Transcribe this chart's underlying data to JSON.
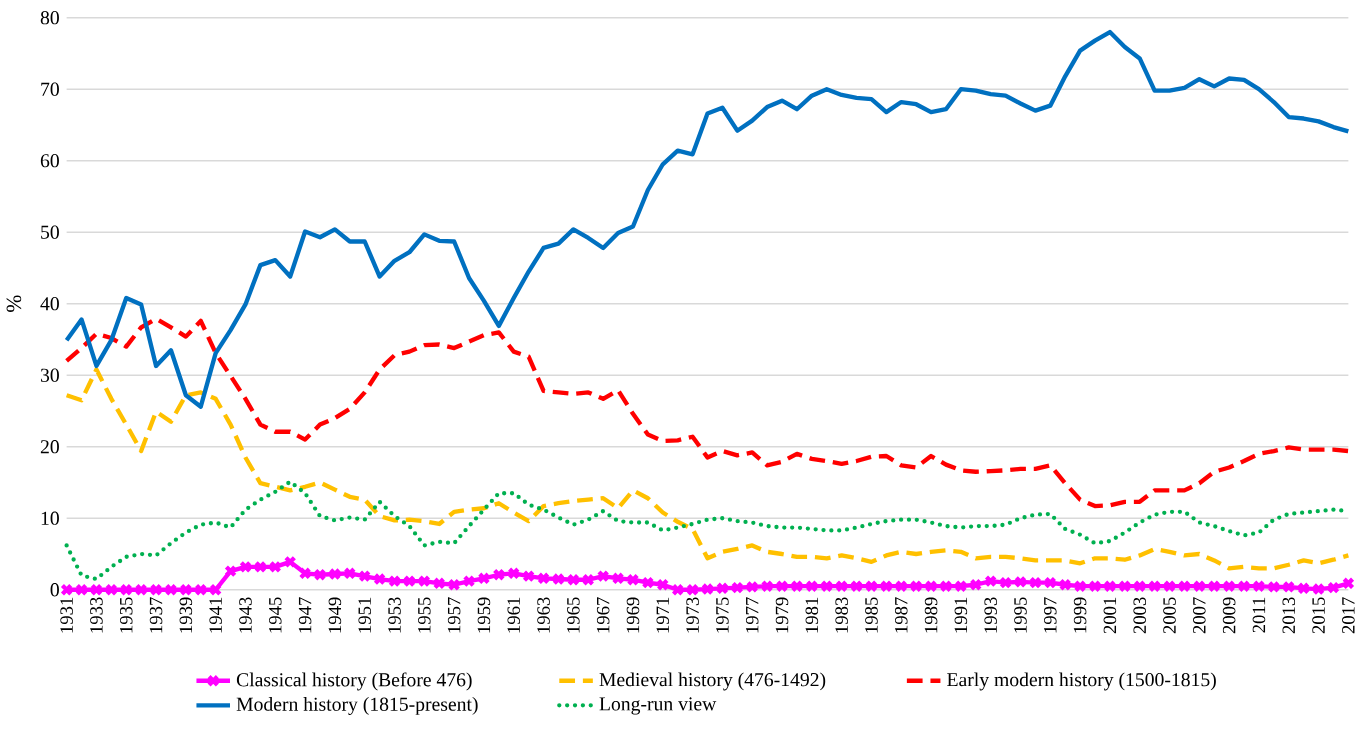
{
  "chart_data": {
    "type": "line",
    "ylabel": "%",
    "x": [
      1931,
      1932,
      1933,
      1934,
      1935,
      1936,
      1937,
      1938,
      1939,
      1940,
      1941,
      1942,
      1943,
      1944,
      1945,
      1946,
      1947,
      1948,
      1949,
      1950,
      1951,
      1952,
      1953,
      1954,
      1955,
      1956,
      1957,
      1958,
      1959,
      1960,
      1961,
      1962,
      1963,
      1964,
      1965,
      1966,
      1967,
      1968,
      1969,
      1970,
      1971,
      1972,
      1973,
      1974,
      1975,
      1976,
      1977,
      1978,
      1979,
      1980,
      1981,
      1982,
      1983,
      1984,
      1985,
      1986,
      1987,
      1988,
      1989,
      1990,
      1991,
      1992,
      1993,
      1994,
      1995,
      1996,
      1997,
      1998,
      1999,
      2000,
      2001,
      2002,
      2003,
      2004,
      2005,
      2006,
      2007,
      2008,
      2009,
      2010,
      2011,
      2012,
      2013,
      2014,
      2015,
      2016,
      2017
    ],
    "xlim": [
      1931,
      2017
    ],
    "xticks": [
      1931,
      1933,
      1935,
      1937,
      1939,
      1941,
      1943,
      1945,
      1947,
      1949,
      1951,
      1953,
      1955,
      1957,
      1959,
      1961,
      1963,
      1965,
      1967,
      1969,
      1971,
      1973,
      1975,
      1977,
      1979,
      1981,
      1983,
      1985,
      1987,
      1989,
      1991,
      1993,
      1995,
      1997,
      1999,
      2001,
      2003,
      2005,
      2007,
      2009,
      2011,
      2013,
      2015,
      2017
    ],
    "ylim": [
      0,
      80
    ],
    "yticks": [
      0,
      10,
      20,
      30,
      40,
      50,
      60,
      70,
      80
    ],
    "grid": "y",
    "legend": "bottom",
    "series": [
      {
        "name": "Classical history (Before 476)",
        "color": "#ff00ff",
        "marker": "cross",
        "line_style": "solid",
        "values": [
          0,
          0,
          0,
          0,
          0,
          0,
          0,
          0,
          0,
          0,
          0,
          2.6,
          3.2,
          3.2,
          3.2,
          3.9,
          2.3,
          2.1,
          2.2,
          2.3,
          1.9,
          1.5,
          1.2,
          1.2,
          1.2,
          0.9,
          0.7,
          1.2,
          1.6,
          2.1,
          2.3,
          1.9,
          1.6,
          1.5,
          1.4,
          1.4,
          1.9,
          1.6,
          1.4,
          1.0,
          0.7,
          0,
          0,
          0.1,
          0.2,
          0.3,
          0.4,
          0.5,
          0.5,
          0.5,
          0.5,
          0.5,
          0.5,
          0.5,
          0.5,
          0.5,
          0.5,
          0.5,
          0.5,
          0.5,
          0.5,
          0.7,
          1.2,
          1.0,
          1.1,
          1.0,
          1.0,
          0.7,
          0.5,
          0.5,
          0.5,
          0.5,
          0.5,
          0.5,
          0.5,
          0.5,
          0.5,
          0.5,
          0.5,
          0.5,
          0.5,
          0.4,
          0.4,
          0.2,
          0.1,
          0.3,
          0.9
        ]
      },
      {
        "name": "Medieval history (476-1492)",
        "color": "#ffc000",
        "marker": "none",
        "line_style": "dashed",
        "values": [
          27.2,
          26.5,
          30.8,
          26.7,
          23.1,
          19.4,
          24.9,
          23.5,
          27.2,
          27.6,
          26.7,
          23.1,
          18.5,
          14.9,
          14.4,
          13.9,
          14.4,
          15.0,
          14.0,
          13.0,
          12.6,
          10.3,
          9.7,
          9.8,
          9.6,
          9.2,
          10.9,
          11.2,
          11.4,
          12.1,
          10.8,
          9.6,
          11.7,
          12.1,
          12.4,
          12.6,
          12.8,
          11.4,
          13.9,
          12.8,
          10.8,
          9.5,
          8.5,
          4.4,
          5.3,
          5.7,
          6.2,
          5.3,
          5.0,
          4.6,
          4.6,
          4.4,
          4.8,
          4.4,
          3.9,
          4.8,
          5.3,
          5.0,
          5.3,
          5.5,
          5.3,
          4.4,
          4.6,
          4.6,
          4.4,
          4.1,
          4.1,
          4.1,
          3.7,
          4.4,
          4.4,
          4.2,
          4.8,
          5.7,
          5.3,
          4.8,
          5.0,
          4.1,
          3.0,
          3.2,
          3.0,
          3.0,
          3.5,
          4.1,
          3.7,
          4.2,
          4.8
        ]
      },
      {
        "name": "Early modern history (1500-1815)",
        "color": "#ff0000",
        "marker": "none",
        "line_style": "dashed",
        "values": [
          32.0,
          33.8,
          35.8,
          35.2,
          34.0,
          36.7,
          37.9,
          36.7,
          35.4,
          37.6,
          33.1,
          29.9,
          26.7,
          23.1,
          22.1,
          22.1,
          21.0,
          23.1,
          24.0,
          25.3,
          27.6,
          30.8,
          32.8,
          33.3,
          34.2,
          34.3,
          33.8,
          34.7,
          35.6,
          36.0,
          33.3,
          32.6,
          27.8,
          27.6,
          27.4,
          27.6,
          26.7,
          27.9,
          24.6,
          21.7,
          20.8,
          20.9,
          21.4,
          18.5,
          19.4,
          18.8,
          19.2,
          17.4,
          17.9,
          19.0,
          18.3,
          18.0,
          17.6,
          18.0,
          18.6,
          18.7,
          17.4,
          17.1,
          18.7,
          17.5,
          16.7,
          16.5,
          16.6,
          16.7,
          16.9,
          16.9,
          17.4,
          14.9,
          12.6,
          11.7,
          11.8,
          12.3,
          12.3,
          13.9,
          13.9,
          13.9,
          14.9,
          16.5,
          17.1,
          18.0,
          19.0,
          19.4,
          19.9,
          19.6,
          19.6,
          19.6,
          19.4
        ]
      },
      {
        "name": "Modern history (1815-present)",
        "color": "#0070c0",
        "marker": "none",
        "line_style": "solid",
        "values": [
          34.9,
          37.8,
          31.3,
          34.9,
          40.8,
          39.9,
          31.3,
          33.5,
          27.2,
          25.6,
          33.1,
          36.3,
          39.9,
          45.4,
          46.1,
          43.8,
          50.1,
          49.3,
          50.4,
          48.7,
          48.7,
          43.8,
          46.0,
          47.2,
          49.7,
          48.8,
          48.7,
          43.6,
          40.4,
          36.9,
          40.8,
          44.5,
          47.8,
          48.4,
          50.4,
          49.2,
          47.8,
          49.9,
          50.8,
          55.9,
          59.5,
          61.4,
          60.9,
          66.6,
          67.4,
          64.2,
          65.6,
          67.5,
          68.4,
          67.2,
          69.1,
          70.0,
          69.2,
          68.8,
          68.6,
          66.8,
          68.2,
          67.9,
          66.8,
          67.2,
          70.0,
          69.8,
          69.3,
          69.1,
          68.0,
          67.0,
          67.7,
          71.8,
          75.4,
          76.8,
          78.0,
          75.9,
          74.3,
          69.8,
          69.8,
          70.2,
          71.4,
          70.4,
          71.5,
          71.3,
          70.0,
          68.2,
          66.1,
          65.9,
          65.5,
          64.7,
          64.1
        ]
      },
      {
        "name": "Long-run view",
        "color": "#00b050",
        "marker": "none",
        "line_style": "dotted",
        "values": [
          6.2,
          2.0,
          1.5,
          3.2,
          4.6,
          5.0,
          4.8,
          6.5,
          8.0,
          9.1,
          9.4,
          8.7,
          11.2,
          12.6,
          13.7,
          15.1,
          13.5,
          10.3,
          9.7,
          10.1,
          9.8,
          12.3,
          10.3,
          8.9,
          6.2,
          6.7,
          6.5,
          8.9,
          11.2,
          13.5,
          13.5,
          11.9,
          11.2,
          10.1,
          9.1,
          9.8,
          11.0,
          9.6,
          9.4,
          9.4,
          8.3,
          8.7,
          9.2,
          9.8,
          10.0,
          9.6,
          9.4,
          8.9,
          8.7,
          8.7,
          8.5,
          8.3,
          8.3,
          8.7,
          9.2,
          9.6,
          9.8,
          9.8,
          9.4,
          8.9,
          8.7,
          8.9,
          8.9,
          9.1,
          10.0,
          10.5,
          10.6,
          8.5,
          7.7,
          6.5,
          6.8,
          8.0,
          9.4,
          10.5,
          10.9,
          10.9,
          9.4,
          8.9,
          8.2,
          7.6,
          8.0,
          9.8,
          10.6,
          10.8,
          11.0,
          11.2,
          11.0
        ]
      }
    ]
  }
}
